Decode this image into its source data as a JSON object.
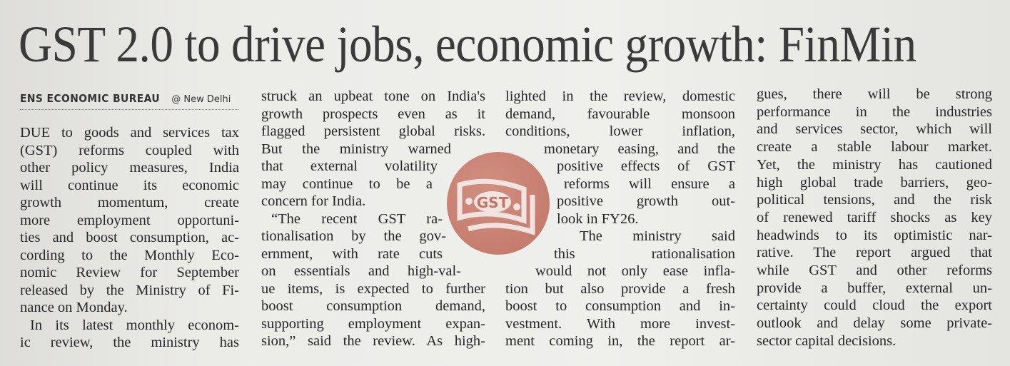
{
  "headline": "GST 2.0 to drive jobs, economic growth: FinMin",
  "byline": {
    "bureau": "ENS ECONOMIC BUREAU",
    "location": "@ New Delhi"
  },
  "graphic": {
    "icon": "gst-banknote-icon",
    "label": "GST",
    "color": "#c47a6b"
  },
  "columns": [
    [
      "DUE to goods and services tax",
      "(GST) reforms coupled with",
      "other policy measures, India",
      "will continue its economic",
      "growth momentum, create",
      "more employment opportuni-",
      "ties and boost consumption, ac-",
      "cording to the Monthly Eco-",
      "nomic Review for September",
      "released by the Ministry of Fi-",
      "nance on Monday.",
      "In its latest monthly econom-",
      "ic review, the ministry has"
    ],
    [
      "struck an upbeat tone on India's",
      "growth prospects even as it",
      "flagged persistent global risks.",
      "But the ministry warned",
      "that external volatility",
      "may continue to be a",
      "concern for India.",
      "“The recent GST ra-",
      "tionalisation by the gov-",
      "ernment, with rate cuts",
      "on essentials and high-val-",
      "ue items, is expected to further",
      "boost consumption demand,",
      "supporting employment expan-",
      "sion,” said the review. As high-"
    ],
    [
      "lighted in the review, domestic",
      "demand, favourable monsoon",
      "conditions, lower inflation,",
      "monetary easing, and the",
      "positive effects of GST",
      "reforms will ensure a",
      "positive growth out-",
      "look in FY26.",
      "The ministry said",
      "this rationalisation",
      "would not only ease infla-",
      "tion but also provide a fresh",
      "boost to consumption and in-",
      "vestment. With more invest-",
      "ment coming in, the report ar-"
    ],
    [
      "gues, there will be strong",
      "performance in the industries",
      "and services sector, which will",
      "create a stable labour market.",
      "Yet, the ministry has cautioned",
      "high global trade barriers, geo-",
      "political tensions, and the risk",
      "of renewed tariff shocks as key",
      "headwinds to its optimistic nar-",
      "rative. The report argued that",
      "while GST and other reforms",
      "provide a buffer, external un-",
      "certainty could cloud the export",
      "outlook and delay some private-",
      "sector capital decisions."
    ]
  ]
}
